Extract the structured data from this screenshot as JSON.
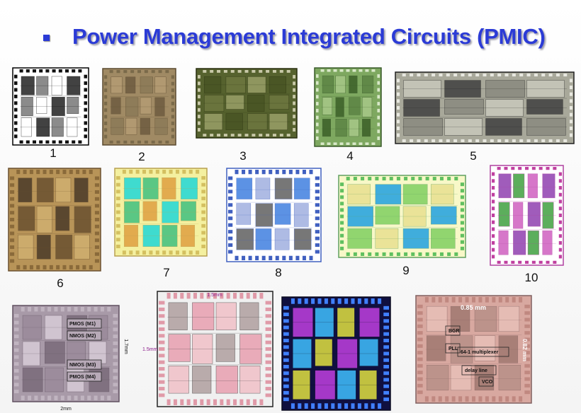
{
  "header": {
    "title": "Power Management Integrated Circuits (PMIC)"
  },
  "chips": [
    {
      "label": "1"
    },
    {
      "label": "2"
    },
    {
      "label": "3"
    },
    {
      "label": "4"
    },
    {
      "label": "5"
    },
    {
      "label": "6"
    },
    {
      "label": "7"
    },
    {
      "label": "8"
    },
    {
      "label": "9"
    },
    {
      "label": "10"
    }
  ],
  "annotations": {
    "chip11": [
      "PMOS (M1)",
      "NMOS (M2)",
      "NMOS (M3)",
      "PMOS (M4)",
      "1.7mm",
      "2mm"
    ],
    "chip12": [
      "1.5mm",
      "1.5mm"
    ],
    "chip14": [
      "0.85 mm",
      "0.82 mm",
      "BGR",
      "PLL",
      "64-1 multiplexer",
      "delay line",
      "VCO"
    ]
  }
}
